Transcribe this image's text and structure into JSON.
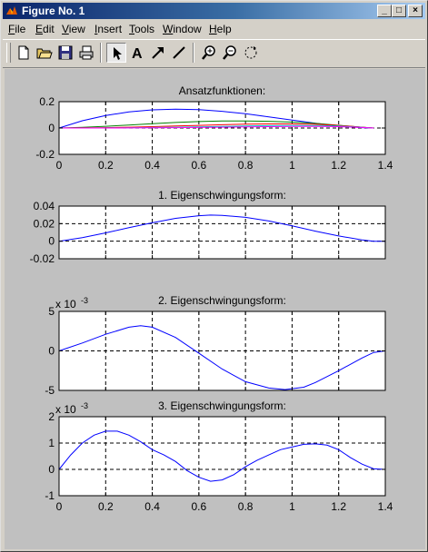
{
  "window": {
    "title": "Figure No. 1",
    "controls": {
      "minimize": "_",
      "maximize": "□",
      "close": "×"
    }
  },
  "menu": [
    {
      "label": "File",
      "mnemonic": "F",
      "rest": "ile"
    },
    {
      "label": "Edit",
      "mnemonic": "E",
      "rest": "dit"
    },
    {
      "label": "View",
      "mnemonic": "V",
      "rest": "iew"
    },
    {
      "label": "Insert",
      "mnemonic": "I",
      "rest": "nsert"
    },
    {
      "label": "Tools",
      "mnemonic": "T",
      "rest": "ools"
    },
    {
      "label": "Window",
      "mnemonic": "W",
      "rest": "indow"
    },
    {
      "label": "Help",
      "mnemonic": "H",
      "rest": "elp"
    }
  ],
  "toolbar": {
    "buttons": [
      "new-file-icon",
      "open-folder-icon",
      "save-icon",
      "print-icon",
      "select-arrow-icon",
      "text-icon",
      "arrow-icon",
      "line-icon",
      "zoom-in-icon",
      "zoom-out-icon",
      "rotate-icon"
    ],
    "text_tool_label": "A"
  },
  "colors": {
    "line_blue": "#0000ff",
    "line_green": "#008000",
    "line_red": "#ff0000",
    "line_magenta": "#ff00ff",
    "line_cyan": "#00bfbf",
    "axes_bg": "#ffffff"
  },
  "chart_data": [
    {
      "type": "line",
      "title": "Ansatzfunktionen:",
      "xlim": [
        0,
        1.4
      ],
      "ylim": [
        -0.2,
        0.2
      ],
      "xticks": [
        0,
        0.2,
        0.4,
        0.6,
        0.8,
        1,
        1.2,
        1.4
      ],
      "xticklabels": [
        "0",
        "0.2",
        "0.4",
        "0.6",
        "0.8",
        "1",
        "1.2",
        "1.4"
      ],
      "yticks": [
        -0.2,
        0,
        0.2
      ],
      "yticklabels": [
        "-0.2",
        "0",
        "0.2"
      ],
      "exponent": "",
      "grid": true,
      "show_xticklabels": true,
      "series": [
        {
          "color": "#0000ff",
          "x": [
            0,
            0.1,
            0.2,
            0.3,
            0.4,
            0.5,
            0.6,
            0.7,
            0.8,
            0.9,
            1.0,
            1.1,
            1.2,
            1.3,
            1.35
          ],
          "y": [
            0,
            0.055,
            0.095,
            0.122,
            0.138,
            0.143,
            0.139,
            0.127,
            0.108,
            0.085,
            0.06,
            0.036,
            0.016,
            0.003,
            0
          ]
        },
        {
          "color": "#008000",
          "x": [
            0,
            0.1,
            0.2,
            0.3,
            0.4,
            0.5,
            0.6,
            0.7,
            0.8,
            0.9,
            1.0,
            1.1,
            1.2,
            1.3,
            1.35
          ],
          "y": [
            0,
            0.005,
            0.013,
            0.023,
            0.033,
            0.042,
            0.049,
            0.053,
            0.054,
            0.051,
            0.045,
            0.035,
            0.021,
            0.006,
            0
          ]
        },
        {
          "color": "#ff0000",
          "x": [
            0,
            0.1,
            0.2,
            0.3,
            0.4,
            0.5,
            0.6,
            0.7,
            0.8,
            0.9,
            1.0,
            1.1,
            1.2,
            1.3,
            1.35
          ],
          "y": [
            0,
            0.001,
            0.003,
            0.006,
            0.01,
            0.015,
            0.02,
            0.025,
            0.029,
            0.031,
            0.031,
            0.028,
            0.02,
            0.006,
            0
          ]
        },
        {
          "color": "#00bfbf",
          "x": [
            0,
            0.1,
            0.2,
            0.3,
            0.4,
            0.5,
            0.6,
            0.7,
            0.8,
            0.9,
            1.0,
            1.1,
            1.2,
            1.3,
            1.35
          ],
          "y": [
            0,
            0,
            0.001,
            0.002,
            0.004,
            0.006,
            0.009,
            0.012,
            0.015,
            0.018,
            0.019,
            0.019,
            0.015,
            0.005,
            0
          ]
        },
        {
          "color": "#ff00ff",
          "x": [
            0,
            0.1,
            0.2,
            0.3,
            0.4,
            0.5,
            0.6,
            0.7,
            0.8,
            0.9,
            1.0,
            1.1,
            1.2,
            1.3,
            1.35
          ],
          "y": [
            0,
            0,
            0,
            0.001,
            0.002,
            0.003,
            0.004,
            0.006,
            0.008,
            0.01,
            0.012,
            0.012,
            0.01,
            0.004,
            0
          ]
        }
      ]
    },
    {
      "type": "line",
      "title": "1. Eigenschwingungsform:",
      "xlim": [
        0,
        1.4
      ],
      "ylim": [
        -0.02,
        0.04
      ],
      "xticks": [
        0,
        0.2,
        0.4,
        0.6,
        0.8,
        1,
        1.2,
        1.4
      ],
      "xticklabels": [],
      "yticks": [
        -0.02,
        0,
        0.02,
        0.04
      ],
      "yticklabels": [
        "-0.02",
        "0",
        "0.02",
        "0.04"
      ],
      "exponent": "",
      "grid": true,
      "show_xticklabels": false,
      "series": [
        {
          "color": "#0000ff",
          "x": [
            0,
            0.1,
            0.2,
            0.3,
            0.4,
            0.5,
            0.6,
            0.65,
            0.7,
            0.8,
            0.9,
            1.0,
            1.1,
            1.2,
            1.3,
            1.35,
            1.4
          ],
          "y": [
            0,
            0.004,
            0.0095,
            0.0155,
            0.021,
            0.026,
            0.029,
            0.0298,
            0.0295,
            0.0272,
            0.023,
            0.0175,
            0.0115,
            0.006,
            0.0015,
            0,
            0
          ]
        }
      ]
    },
    {
      "type": "line",
      "title": "2. Eigenschwingungsform:",
      "xlim": [
        0,
        1.4
      ],
      "ylim": [
        -5,
        5
      ],
      "xticks": [
        0,
        0.2,
        0.4,
        0.6,
        0.8,
        1,
        1.2,
        1.4
      ],
      "xticklabels": [],
      "yticks": [
        -5,
        0,
        5
      ],
      "yticklabels": [
        "-5",
        "0",
        "5"
      ],
      "exponent": "x 10",
      "exponent_power": "-3",
      "grid": true,
      "show_xticklabels": false,
      "series": [
        {
          "color": "#0000ff",
          "x": [
            0,
            0.1,
            0.2,
            0.3,
            0.35,
            0.4,
            0.5,
            0.6,
            0.7,
            0.8,
            0.9,
            0.97,
            1.05,
            1.1,
            1.2,
            1.3,
            1.35,
            1.4
          ],
          "y": [
            0,
            1.0,
            2.1,
            3.0,
            3.2,
            3.0,
            1.7,
            -0.3,
            -2.3,
            -3.9,
            -4.7,
            -4.9,
            -4.6,
            -4.0,
            -2.5,
            -0.9,
            -0.2,
            0
          ]
        }
      ]
    },
    {
      "type": "line",
      "title": "3. Eigenschwingungsform:",
      "xlim": [
        0,
        1.4
      ],
      "ylim": [
        -1,
        2
      ],
      "xticks": [
        0,
        0.2,
        0.4,
        0.6,
        0.8,
        1,
        1.2,
        1.4
      ],
      "xticklabels": [
        "0",
        "0.2",
        "0.4",
        "0.6",
        "0.8",
        "1",
        "1.2",
        "1.4"
      ],
      "yticks": [
        -1,
        0,
        1,
        2
      ],
      "yticklabels": [
        "-1",
        "0",
        "1",
        "2"
      ],
      "exponent": "x 10",
      "exponent_power": "-3",
      "grid": true,
      "show_xticklabels": true,
      "series": [
        {
          "color": "#0000ff",
          "x": [
            0,
            0.05,
            0.1,
            0.15,
            0.2,
            0.25,
            0.3,
            0.35,
            0.4,
            0.45,
            0.5,
            0.55,
            0.6,
            0.65,
            0.7,
            0.75,
            0.8,
            0.85,
            0.9,
            0.95,
            1.0,
            1.05,
            1.1,
            1.15,
            1.2,
            1.25,
            1.3,
            1.35,
            1.4
          ],
          "y": [
            0,
            0.55,
            1.0,
            1.3,
            1.45,
            1.45,
            1.3,
            1.05,
            0.75,
            0.55,
            0.3,
            -0.05,
            -0.3,
            -0.45,
            -0.4,
            -0.2,
            0.1,
            0.35,
            0.55,
            0.75,
            0.85,
            0.95,
            0.97,
            0.92,
            0.75,
            0.45,
            0.2,
            0.02,
            0
          ]
        }
      ]
    }
  ]
}
